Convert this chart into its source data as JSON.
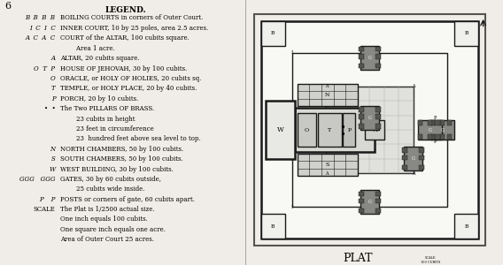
{
  "bg_color": "#f0ede8",
  "border_color": "#2a2a2a",
  "title": "LEGEND.",
  "legend_lines": [
    [
      "B  B  B  B",
      "BOILING COURTS in corners of Outer Court."
    ],
    [
      "I  C  I  C",
      "INNER COURT, 10 by 25 poles, area 2.5 acres."
    ],
    [
      "A  C  A  C",
      "COURT of the ALTAR, 100 cubits square."
    ],
    [
      "",
      "        Area 1 acre."
    ],
    [
      "A",
      "ALTAR, 20 cubits square."
    ],
    [
      "O  T  P",
      "HOUSE OF JEHOVAH, 30 by 100 cubits."
    ],
    [
      "O",
      "ORACLE, or HOLY OF HOLIES, 20 cubits sq."
    ],
    [
      "T",
      "TEMPLE, or HOLY PLACE, 20 by 40 cubits."
    ],
    [
      "P",
      "PORCH, 20 by 10 cubits."
    ],
    [
      "•  •",
      "The Two PILLARS OF BRASS."
    ],
    [
      "",
      "        23 cubits in height"
    ],
    [
      "",
      "        23 feet in circumference"
    ],
    [
      "",
      "        23  hundred feet above sea level to top."
    ],
    [
      "N",
      "NORTH CHAMBERS, 50 by 100 cubits."
    ],
    [
      "S",
      "SOUTH CHAMBERS, 50 by 100 cubits."
    ],
    [
      "W",
      "WEST BUILDING, 30 by 100 cubits."
    ],
    [
      "GGG   GGG",
      "GATES, 30 by 60 cubits outside,"
    ],
    [
      "",
      "        25 cubits wide inside."
    ],
    [
      "P    P",
      "POSTS or corners of gate, 60 cubits apart."
    ],
    [
      "SCALE",
      "The Plat is 1/2500 actual size."
    ],
    [
      "",
      "One inch equals 100 cubits."
    ],
    [
      "",
      "One square inch equals one acre."
    ],
    [
      "",
      "Area of Outer Court 25 acres."
    ]
  ],
  "plan_bg": "#f5f5f0",
  "outer_court_color": "#ffffff",
  "wall_color": "#1a1a1a",
  "grid_color": "#cccccc",
  "inner_fill": "#e8e8e8",
  "altar_fill": "#d0d0d0",
  "plat_text": "PLAT"
}
